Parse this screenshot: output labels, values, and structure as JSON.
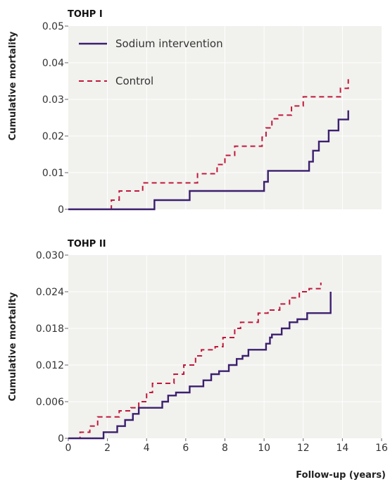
{
  "figure": {
    "x_axis_label": "Follow-up (years)",
    "y_axis_label": "Cumulative mortality"
  },
  "chart_data": [
    {
      "type": "line",
      "title": "TOHP I",
      "ylabel": "Cumulative mortality",
      "xlim": [
        0,
        16
      ],
      "ylim": [
        0,
        0.05
      ],
      "y_ticks": [
        "0",
        "0.01",
        "0.02",
        "0.03",
        "0.04",
        "0.05"
      ],
      "x_ticks": [],
      "legend": "top-left",
      "grid": true,
      "series": [
        {
          "name": "Sodium intervention",
          "style": "solid",
          "color": "#3b1f6e",
          "x": [
            0,
            4.4,
            6.2,
            10.0,
            10.2,
            12.3,
            12.5,
            12.8,
            13.3,
            13.8,
            14.3
          ],
          "y": [
            0,
            0.0025,
            0.005,
            0.0075,
            0.0105,
            0.013,
            0.016,
            0.0185,
            0.0215,
            0.0245,
            0.027
          ]
        },
        {
          "name": "Control",
          "style": "dashed",
          "color": "#c0183a",
          "x": [
            0,
            2.2,
            2.6,
            3.8,
            6.6,
            7.6,
            8.0,
            8.5,
            9.9,
            10.1,
            10.4,
            10.7,
            11.4,
            12.0,
            12.9,
            13.9,
            14.3
          ],
          "y": [
            0,
            0.0025,
            0.005,
            0.0072,
            0.0097,
            0.0122,
            0.0147,
            0.0172,
            0.0197,
            0.0222,
            0.0247,
            0.0257,
            0.0282,
            0.0307,
            0.0307,
            0.033,
            0.0355
          ]
        }
      ]
    },
    {
      "type": "line",
      "title": "TOHP II",
      "ylabel": "Cumulative mortality",
      "xlim": [
        0,
        16
      ],
      "ylim": [
        0,
        0.03
      ],
      "y_ticks": [
        "0",
        "0.006",
        "0.012",
        "0.018",
        "0.024",
        "0.030"
      ],
      "x_ticks": [
        "0",
        "2",
        "4",
        "6",
        "8",
        "10",
        "12",
        "14",
        "16"
      ],
      "grid": true,
      "series": [
        {
          "name": "Sodium intervention",
          "style": "solid",
          "color": "#3b1f6e",
          "x": [
            0,
            1.8,
            2.5,
            2.9,
            3.3,
            3.6,
            4.1,
            4.8,
            5.1,
            5.5,
            6.2,
            6.9,
            7.3,
            7.7,
            8.2,
            8.6,
            8.9,
            9.2,
            10.1,
            10.3,
            10.4,
            10.9,
            11.3,
            11.7,
            12.2,
            13.4
          ],
          "y": [
            0,
            0.001,
            0.002,
            0.003,
            0.004,
            0.005,
            0.005,
            0.006,
            0.007,
            0.0075,
            0.0085,
            0.0095,
            0.0105,
            0.011,
            0.012,
            0.013,
            0.0135,
            0.0145,
            0.0155,
            0.0165,
            0.017,
            0.018,
            0.019,
            0.0195,
            0.0205,
            0.024
          ]
        },
        {
          "name": "Control",
          "style": "dashed",
          "color": "#c0183a",
          "x": [
            0,
            0.6,
            1.1,
            1.5,
            2.2,
            2.6,
            3.2,
            3.6,
            4.0,
            4.3,
            5.4,
            5.9,
            6.5,
            6.8,
            7.5,
            7.9,
            8.5,
            8.8,
            9.1,
            9.7,
            10.2,
            10.8,
            11.3,
            11.8,
            12.3,
            12.9
          ],
          "y": [
            0,
            0.001,
            0.002,
            0.0035,
            0.0035,
            0.0045,
            0.005,
            0.006,
            0.0075,
            0.009,
            0.0105,
            0.012,
            0.0135,
            0.0145,
            0.015,
            0.0165,
            0.018,
            0.019,
            0.019,
            0.0205,
            0.021,
            0.022,
            0.023,
            0.024,
            0.0245,
            0.0255
          ]
        }
      ]
    }
  ]
}
